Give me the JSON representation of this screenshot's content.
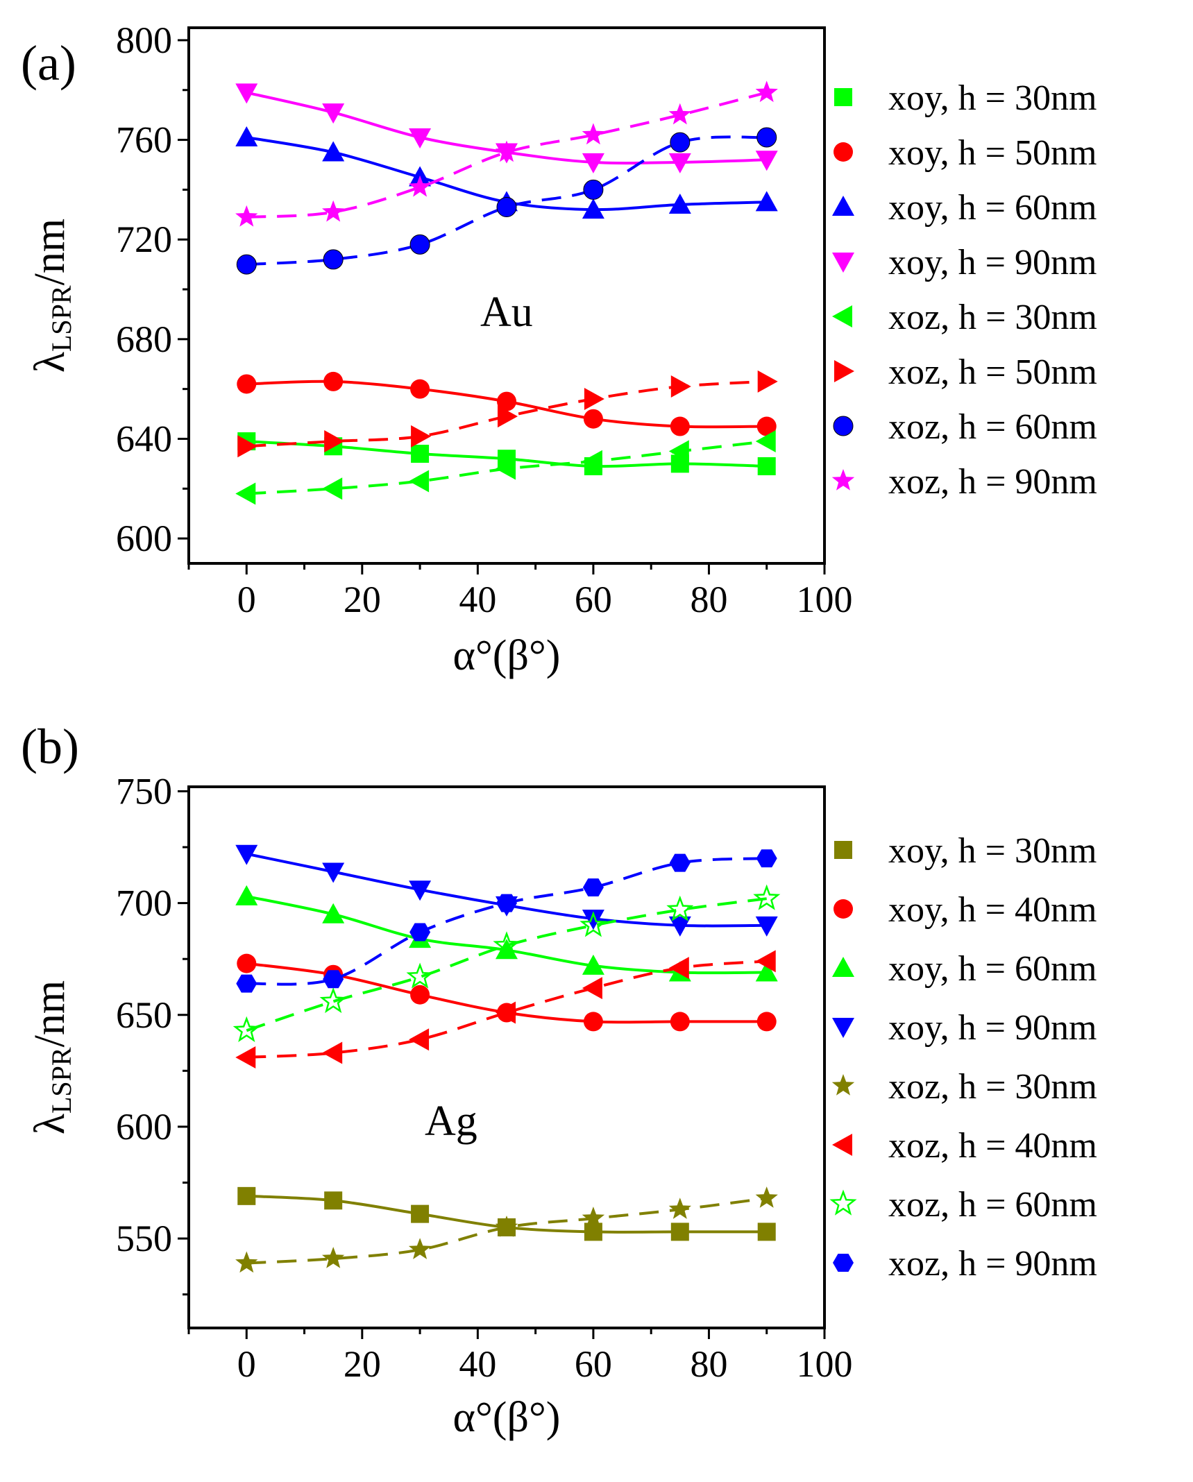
{
  "panels": [
    {
      "panel_label": "(a)",
      "annotation": "Au",
      "ylabel_main": "λ",
      "ylabel_sub": "LSPR",
      "ylabel_tail": "/nm",
      "xlabel": "α°(β°)",
      "xticks": [
        "0",
        "20",
        "40",
        "60",
        "80",
        "100"
      ],
      "yticks": [
        "600",
        "640",
        "680",
        "720",
        "760",
        "800"
      ]
    },
    {
      "panel_label": "(b)",
      "annotation": "Ag",
      "ylabel_main": "λ",
      "ylabel_sub": "LSPR",
      "ylabel_tail": "/nm",
      "xlabel": "α°(β°)",
      "xticks": [
        "0",
        "20",
        "40",
        "60",
        "80",
        "100"
      ],
      "yticks": [
        "550",
        "600",
        "650",
        "700",
        "750"
      ]
    }
  ],
  "chart_data": [
    {
      "type": "line",
      "title": "(a)",
      "annotation": "Au",
      "xlabel": "α°(β°)",
      "ylabel": "λLSPR/nm",
      "xlim": [
        -10,
        100
      ],
      "ylim": [
        590,
        805
      ],
      "xticks": [
        0,
        20,
        40,
        60,
        80,
        100
      ],
      "yticks": [
        600,
        640,
        680,
        720,
        760,
        800
      ],
      "x": [
        0,
        15,
        30,
        45,
        60,
        75,
        90
      ],
      "legend_position": "right",
      "series": [
        {
          "name": "xoy, h = 30nm",
          "marker": "square",
          "color": "#00ff00",
          "dash": false,
          "values": [
            639,
            637,
            634,
            632,
            629,
            630,
            629
          ]
        },
        {
          "name": "xoy, h = 50nm",
          "marker": "circle",
          "color": "#ff0000",
          "dash": false,
          "values": [
            662,
            663,
            660,
            655,
            648,
            645,
            645
          ]
        },
        {
          "name": "xoy, h = 60nm",
          "marker": "triangle-up",
          "color": "#0000ff",
          "dash": false,
          "values": [
            761,
            755,
            745,
            735,
            732,
            734,
            735
          ]
        },
        {
          "name": "xoy, h = 90nm",
          "marker": "triangle-down",
          "color": "#ff00ff",
          "dash": false,
          "values": [
            779,
            771,
            761,
            755,
            751,
            751,
            752
          ]
        },
        {
          "name": "xoz, h = 30nm",
          "marker": "triangle-left",
          "color": "#00ff00",
          "dash": true,
          "values": [
            618,
            620,
            623,
            628,
            631,
            635,
            639
          ]
        },
        {
          "name": "xoz, h = 50nm",
          "marker": "triangle-right",
          "color": "#ff0000",
          "dash": true,
          "values": [
            637,
            639,
            641,
            649,
            656,
            661,
            663
          ]
        },
        {
          "name": "xoz, h = 60nm",
          "marker": "sphere",
          "color": "#0000ff",
          "dash": true,
          "values": [
            710,
            712,
            718,
            733,
            740,
            759,
            761
          ]
        },
        {
          "name": "xoz, h = 90nm",
          "marker": "star",
          "color": "#ff00ff",
          "dash": true,
          "values": [
            729,
            731,
            741,
            755,
            762,
            770,
            779
          ]
        }
      ]
    },
    {
      "type": "line",
      "title": "(b)",
      "annotation": "Ag",
      "xlabel": "α°(β°)",
      "ylabel": "λLSPR/nm",
      "xlim": [
        -10,
        100
      ],
      "ylim": [
        510,
        752
      ],
      "xticks": [
        0,
        20,
        40,
        60,
        80,
        100
      ],
      "yticks": [
        550,
        600,
        650,
        700,
        750
      ],
      "x": [
        0,
        15,
        30,
        45,
        60,
        75,
        90
      ],
      "legend_position": "right",
      "series": [
        {
          "name": "xoy, h = 30nm",
          "marker": "square",
          "color": "#808000",
          "dash": false,
          "values": [
            569,
            567,
            561,
            555,
            553,
            553,
            553
          ]
        },
        {
          "name": "xoy, h = 40nm",
          "marker": "circle",
          "color": "#ff0000",
          "dash": false,
          "values": [
            673,
            668,
            659,
            651,
            647,
            647,
            647
          ]
        },
        {
          "name": "xoy, h = 60nm",
          "marker": "triangle-up",
          "color": "#00ff00",
          "dash": false,
          "values": [
            703,
            695,
            684,
            679,
            672,
            669,
            669
          ]
        },
        {
          "name": "xoy, h = 90nm",
          "marker": "triangle-down",
          "color": "#0000ff",
          "dash": false,
          "values": [
            722,
            714,
            706,
            699,
            693,
            690,
            690
          ]
        },
        {
          "name": "xoz, h = 30nm",
          "marker": "star",
          "color": "#808000",
          "dash": true,
          "values": [
            539,
            541,
            545,
            555,
            559,
            563,
            568
          ]
        },
        {
          "name": "xoz, h = 40nm",
          "marker": "triangle-left",
          "color": "#ff0000",
          "dash": true,
          "values": [
            631,
            633,
            639,
            651,
            662,
            671,
            674
          ]
        },
        {
          "name": "xoz, h = 60nm",
          "marker": "star-open",
          "color": "#00ff00",
          "dash": true,
          "values": [
            643,
            656,
            667,
            681,
            690,
            697,
            702
          ]
        },
        {
          "name": "xoz, h = 90nm",
          "marker": "hexagon",
          "color": "#0000ff",
          "dash": true,
          "values": [
            664,
            666,
            687,
            700,
            707,
            718,
            720
          ]
        }
      ]
    }
  ]
}
